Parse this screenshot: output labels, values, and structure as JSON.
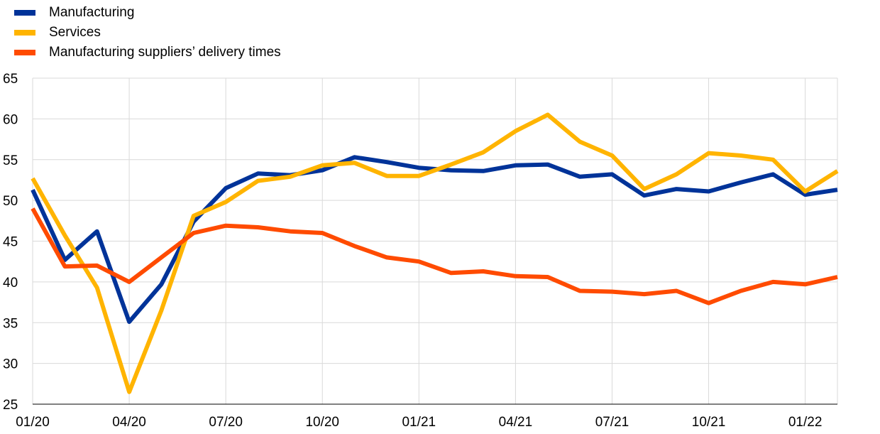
{
  "chart_data": {
    "type": "line",
    "title": "",
    "xlabel": "",
    "ylabel": "",
    "ylim": [
      25,
      65
    ],
    "yticks": [
      25,
      30,
      35,
      40,
      45,
      50,
      55,
      60,
      65
    ],
    "x": [
      "01/20",
      "02/20",
      "03/20",
      "04/20",
      "05/20",
      "06/20",
      "07/20",
      "08/20",
      "09/20",
      "10/20",
      "11/20",
      "12/20",
      "01/21",
      "02/21",
      "03/21",
      "04/21",
      "05/21",
      "06/21",
      "07/21",
      "08/21",
      "09/21",
      "10/21",
      "11/21",
      "12/21",
      "01/22",
      "02/22"
    ],
    "xtick_labels": [
      "01/20",
      "04/20",
      "07/20",
      "10/20",
      "01/21",
      "04/21",
      "07/21",
      "10/21",
      "01/22"
    ],
    "grid": true,
    "legend_position": "top-left",
    "series": [
      {
        "name": "Manufacturing",
        "color": "#003399",
        "values": [
          51.3,
          42.7,
          46.2,
          35.1,
          39.7,
          47.4,
          51.5,
          53.3,
          53.1,
          53.7,
          55.3,
          54.7,
          54.0,
          53.7,
          53.6,
          54.3,
          54.4,
          52.9,
          53.2,
          50.6,
          51.4,
          51.1,
          52.2,
          53.2,
          50.7,
          51.3
        ]
      },
      {
        "name": "Services",
        "color": "#FFB400",
        "values": [
          52.7,
          45.7,
          39.3,
          26.5,
          36.5,
          48.1,
          49.8,
          52.4,
          52.9,
          54.3,
          54.6,
          53.0,
          53.0,
          54.4,
          55.9,
          58.5,
          60.5,
          57.2,
          55.5,
          51.4,
          53.2,
          55.8,
          55.5,
          55.0,
          51.1,
          53.6
        ]
      },
      {
        "name": "Manufacturing suppliers’ delivery times",
        "color": "#FF4B00",
        "values": [
          49.0,
          41.9,
          42.0,
          40.0,
          43.0,
          46.0,
          46.9,
          46.7,
          46.2,
          46.0,
          44.4,
          43.0,
          42.5,
          41.1,
          41.3,
          40.7,
          40.6,
          38.9,
          38.8,
          38.5,
          38.9,
          37.4,
          38.9,
          40.0,
          39.7,
          40.6
        ]
      }
    ]
  }
}
